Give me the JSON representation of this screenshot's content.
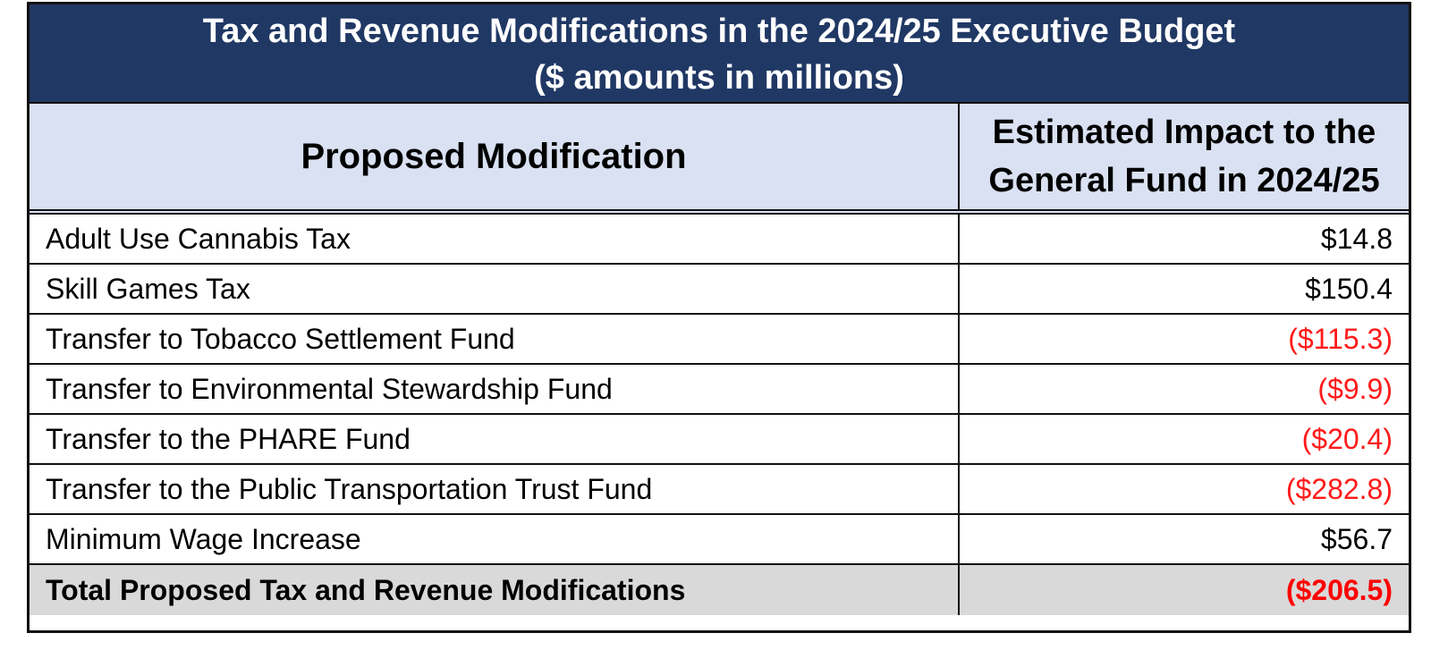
{
  "table": {
    "title_line1": "Tax and Revenue Modifications in the 2024/25 Executive Budget",
    "title_line2": "($ amounts in millions)",
    "header_modification": "Proposed Modification",
    "header_impact_line1": "Estimated Impact to the",
    "header_impact_line2": "General Fund in 2024/25",
    "rows": [
      {
        "label": "Adult Use Cannabis Tax",
        "value": "$14.8"
      },
      {
        "label": "Skill Games Tax",
        "value": "$150.4"
      },
      {
        "label": "Transfer to Tobacco Settlement Fund",
        "value": "($115.3)"
      },
      {
        "label": "Transfer to Environmental Stewardship Fund",
        "value": "($9.9)"
      },
      {
        "label": "Transfer to the PHARE Fund",
        "value": "($20.4)"
      },
      {
        "label": "Transfer to the Public Transportation Trust Fund",
        "value": "($282.8)"
      },
      {
        "label": "Minimum Wage Increase",
        "value": "$56.7"
      }
    ],
    "total": {
      "label": "Total Proposed Tax and Revenue Modifications",
      "value": "($206.5)"
    }
  },
  "colors": {
    "title_bg": "#203864",
    "header_bg": "#d9e1f2",
    "total_bg": "#d9d9d9",
    "negative_text": "#ff0000"
  }
}
